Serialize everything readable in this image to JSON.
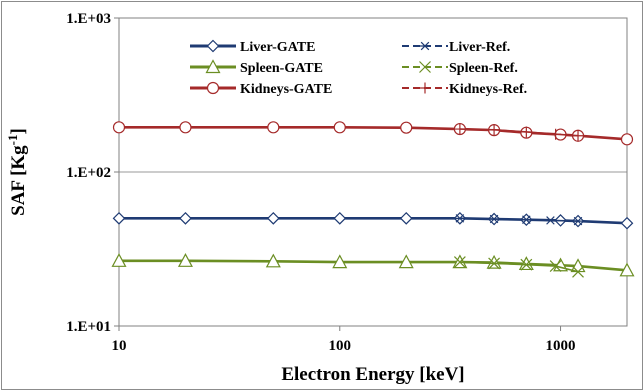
{
  "chart_data": {
    "type": "line",
    "title": "",
    "xlabel": "Electron Energy [keV]",
    "ylabel": "SAF [Kg",
    "ylabel_superscript": "-1",
    "ylabel_close": "]",
    "x_scale": "log",
    "y_scale": "log",
    "xlim": [
      10,
      2000
    ],
    "ylim": [
      10,
      1000
    ],
    "x_ticks": [
      {
        "value": 10,
        "label": "10"
      },
      {
        "value": 100,
        "label": "100"
      },
      {
        "value": 1000,
        "label": "1000"
      }
    ],
    "y_ticks": [
      {
        "value": 10,
        "label": "1.E+01"
      },
      {
        "value": 100,
        "label": "1.E+02"
      },
      {
        "value": 1000,
        "label": "1.E+03"
      }
    ],
    "grid": "horizontal major lines",
    "legend_position": "top",
    "series": [
      {
        "name": "Liver-GATE",
        "color": "#1f3b73",
        "marker": "diamond",
        "line": true,
        "x": [
          10,
          20,
          50,
          100,
          200,
          350,
          500,
          700,
          1000,
          1200,
          2000
        ],
        "y": [
          50,
          50,
          50,
          50,
          50,
          50,
          49.5,
          49,
          48.5,
          48,
          46.5
        ]
      },
      {
        "name": "Liver-Ref.",
        "color": "#1f3b73",
        "marker": "asterisk",
        "line": true,
        "x": [
          350,
          500,
          700,
          900,
          1200
        ],
        "y": [
          50,
          49.5,
          49,
          48.5,
          48
        ]
      },
      {
        "name": "Spleen-GATE",
        "color": "#6b8e23",
        "marker": "triangle",
        "line": true,
        "x": [
          10,
          20,
          50,
          100,
          200,
          350,
          500,
          700,
          1000,
          1200,
          2000
        ],
        "y": [
          26.5,
          26.5,
          26.3,
          26,
          26,
          26,
          25.8,
          25.3,
          24.8,
          24.5,
          23
        ]
      },
      {
        "name": "Spleen-Ref.",
        "color": "#6b8e23",
        "marker": "x",
        "line": true,
        "x": [
          350,
          500,
          700,
          950,
          1200
        ],
        "y": [
          26,
          25.5,
          25,
          24.5,
          22.5
        ]
      },
      {
        "name": "Kidneys-GATE",
        "color": "#a52a2a",
        "marker": "circle",
        "line": true,
        "x": [
          10,
          20,
          50,
          100,
          200,
          350,
          500,
          700,
          1000,
          1200,
          2000
        ],
        "y": [
          195,
          195,
          195,
          195,
          194,
          190,
          187,
          180,
          175,
          172,
          163
        ]
      },
      {
        "name": "Kidneys-Ref.",
        "color": "#a52a2a",
        "marker": "plus",
        "line": true,
        "x": [
          350,
          500,
          700,
          950,
          1200
        ],
        "y": [
          190,
          188,
          182,
          176,
          172
        ]
      }
    ]
  }
}
